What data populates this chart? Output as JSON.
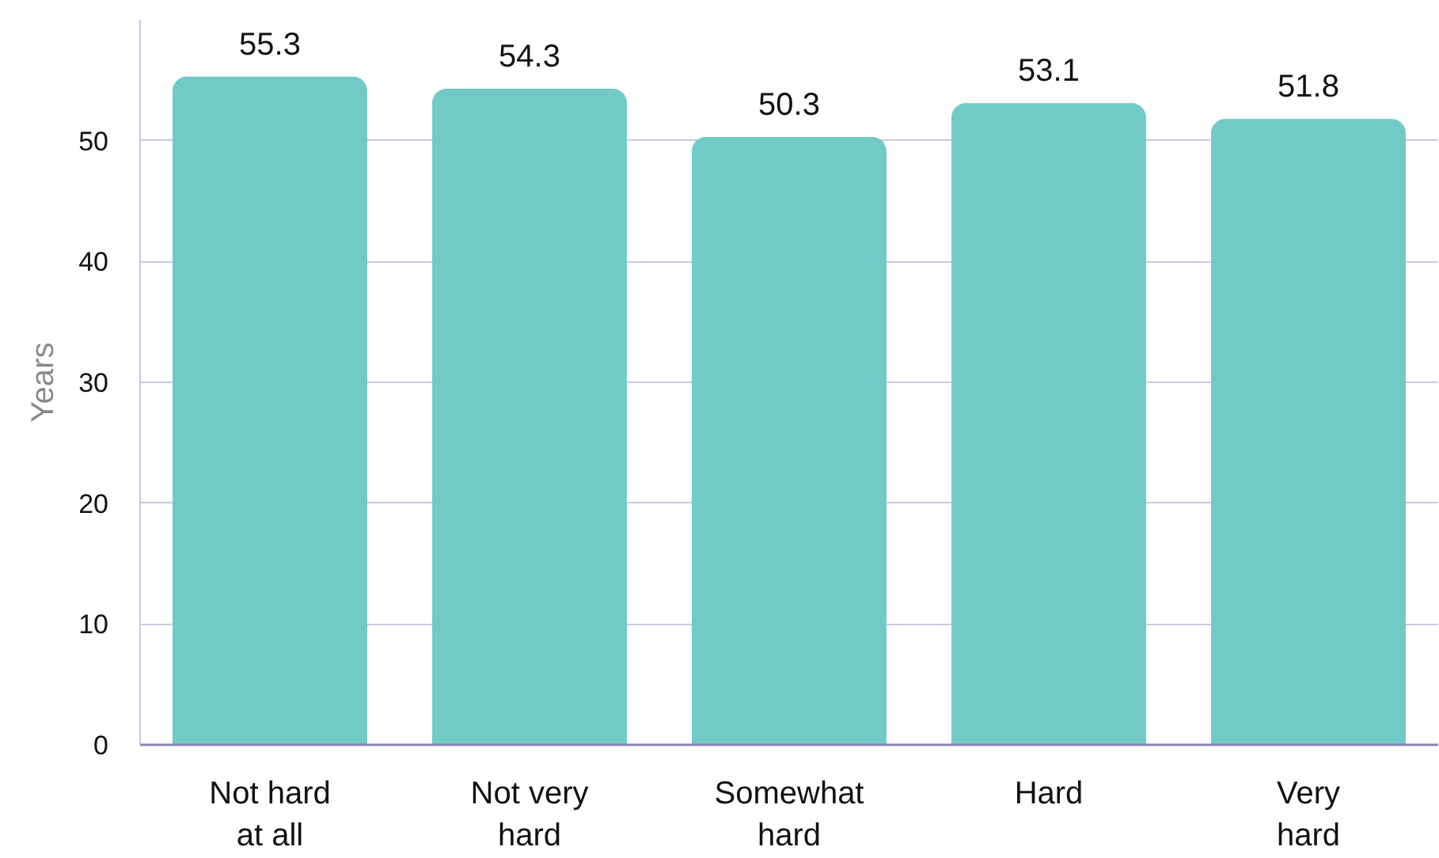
{
  "chart_data": {
    "type": "bar",
    "ylabel": "Years",
    "categories": [
      "Not hard at all",
      "Not very hard",
      "Somewhat hard",
      "Hard",
      "Very hard"
    ],
    "values": [
      55.3,
      54.3,
      50.3,
      53.1,
      51.8
    ],
    "color": "#72cac7",
    "ylim": [
      0,
      60
    ],
    "yticks": [
      0,
      10,
      20,
      30,
      40,
      50
    ],
    "grid": "y",
    "data_labels": true
  }
}
